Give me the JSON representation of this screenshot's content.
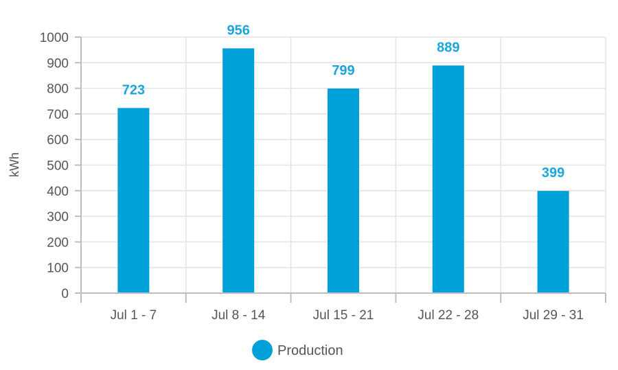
{
  "chart_data": {
    "type": "bar",
    "categories": [
      "Jul 1 - 7",
      "Jul 8 - 14",
      "Jul 15 - 21",
      "Jul 22 - 28",
      "Jul 29 - 31"
    ],
    "series": [
      {
        "name": "Production",
        "values": [
          723,
          956,
          799,
          889,
          399
        ],
        "color": "#00a0d8"
      }
    ],
    "xlabel": "",
    "ylabel": "kWh",
    "ylim": [
      0,
      1000
    ],
    "yticks": [
      0,
      100,
      200,
      300,
      400,
      500,
      600,
      700,
      800,
      900,
      1000
    ],
    "data_labels": true,
    "data_label_color": "#1aa5dc",
    "grid": true,
    "legend_position": "bottom-center"
  }
}
